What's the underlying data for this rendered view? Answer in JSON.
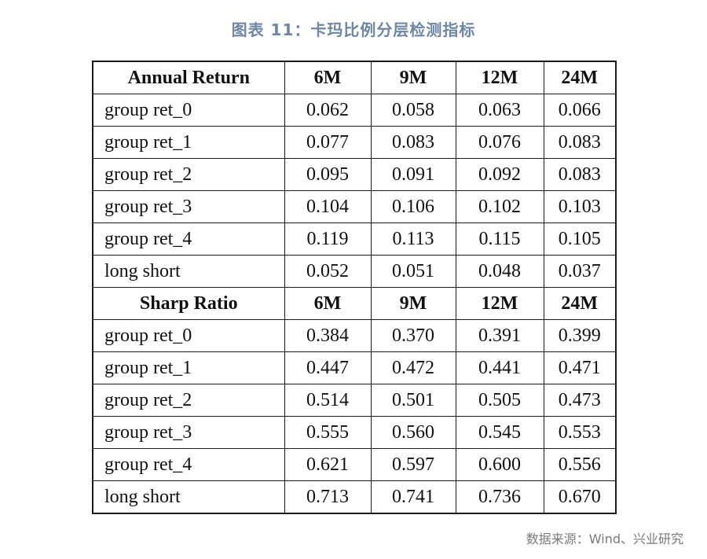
{
  "title": "图表 11：卡玛比例分层检测指标",
  "source": "数据来源：Wind、兴业研究",
  "sections": [
    {
      "header": [
        "Annual Return",
        "6M",
        "9M",
        "12M",
        "24M"
      ],
      "rows": [
        [
          "group ret_0",
          "0.062",
          "0.058",
          "0.063",
          "0.066"
        ],
        [
          "group ret_1",
          "0.077",
          "0.083",
          "0.076",
          "0.083"
        ],
        [
          "group ret_2",
          "0.095",
          "0.091",
          "0.092",
          "0.083"
        ],
        [
          "group ret_3",
          "0.104",
          "0.106",
          "0.102",
          "0.103"
        ],
        [
          "group ret_4",
          "0.119",
          "0.113",
          "0.115",
          "0.105"
        ],
        [
          "long short",
          "0.052",
          "0.051",
          "0.048",
          "0.037"
        ]
      ]
    },
    {
      "header": [
        "Sharp Ratio",
        "6M",
        "9M",
        "12M",
        "24M"
      ],
      "rows": [
        [
          "group ret_0",
          "0.384",
          "0.370",
          "0.391",
          "0.399"
        ],
        [
          "group ret_1",
          "0.447",
          "0.472",
          "0.441",
          "0.471"
        ],
        [
          "group ret_2",
          "0.514",
          "0.501",
          "0.505",
          "0.473"
        ],
        [
          "group ret_3",
          "0.555",
          "0.560",
          "0.545",
          "0.553"
        ],
        [
          "group ret_4",
          "0.621",
          "0.597",
          "0.600",
          "0.556"
        ],
        [
          "long short",
          "0.713",
          "0.741",
          "0.736",
          "0.670"
        ]
      ]
    }
  ]
}
